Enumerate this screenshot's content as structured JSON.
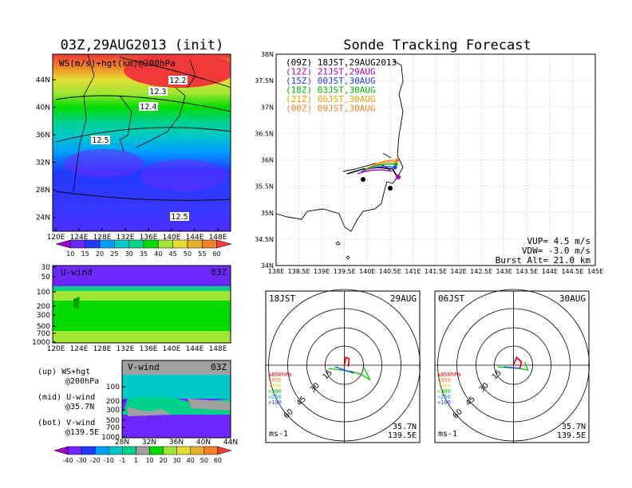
{
  "left_title": "03Z,29AUG2013 (init)",
  "right_title": "Sonde Tracking Forecast",
  "map_panel": {
    "label": "WS(m/s)+hgt(km)@200hPa",
    "y_ticks": [
      "44N",
      "40N",
      "36N",
      "32N",
      "28N",
      "24N"
    ],
    "x_ticks": [
      "120E",
      "124E",
      "128E",
      "132E",
      "136E",
      "140E",
      "144E",
      "148E"
    ],
    "contours": [
      "12.2",
      "12.3",
      "12.4",
      "12.5",
      "12.5"
    ]
  },
  "ws_colorbar": {
    "labels": [
      "10",
      "15",
      "20",
      "25",
      "30",
      "35",
      "40",
      "45",
      "50",
      "55",
      "60"
    ],
    "colors": [
      "#a000c8",
      "#6e28ff",
      "#1e3cff",
      "#00a0ff",
      "#00c8c8",
      "#00d28c",
      "#00dc00",
      "#a0e632",
      "#e6dc32",
      "#e6af2d",
      "#f08228",
      "#fa3c3c"
    ]
  },
  "u_panel": {
    "label": "U-wind",
    "time": "03Z",
    "y_ticks": [
      "30",
      "50",
      "100",
      "200",
      "300",
      "500",
      "700",
      "1000"
    ],
    "x_ticks": [
      "120E",
      "124E",
      "128E",
      "132E",
      "136E",
      "140E",
      "144E",
      "148E"
    ]
  },
  "v_panel": {
    "label": "V-wind",
    "time": "03Z",
    "y_ticks": [
      "100",
      "200",
      "300",
      "500",
      "700",
      "1000"
    ],
    "x_ticks": [
      "28N",
      "32N",
      "36N",
      "40N",
      "44N"
    ]
  },
  "legend_notes": [
    {
      "a": "(up) WS+hgt",
      "b": "@200hPa"
    },
    {
      "a": "(mid) U-wind",
      "b": "@35.7N"
    },
    {
      "a": "(bot) V-wind",
      "b": "@139.5E"
    }
  ],
  "wind_colorbar": {
    "labels": [
      "-40",
      "-30",
      "-20",
      "-10",
      "-1",
      "1",
      "10",
      "20",
      "30",
      "40",
      "50",
      "60"
    ],
    "colors": [
      "#a000c8",
      "#6e28ff",
      "#1e3cff",
      "#00a0ff",
      "#00c8c8",
      "#00d28c",
      "#a0a0a0",
      "#00dc00",
      "#a0e632",
      "#e6dc32",
      "#e6af2d",
      "#f08228",
      "#fa3c3c"
    ]
  },
  "track_panel": {
    "y_ticks": [
      "38N",
      "37.5N",
      "37N",
      "36.5N",
      "36N",
      "35.5N",
      "35N",
      "34.5N",
      "34N"
    ],
    "x_ticks": [
      "138E",
      "138.5E",
      "139E",
      "139.5E",
      "140E",
      "140.5E",
      "141E",
      "141.5E",
      "142E",
      "142.5E",
      "143E",
      "143.5E",
      "144E",
      "144.5E",
      "145E"
    ],
    "legend": [
      {
        "text": "(09Z) 18JST,29AUG2013",
        "color": "#000000"
      },
      {
        "text": "(12Z) 21JST,29AUG",
        "color": "#b400b4"
      },
      {
        "text": "(15Z) 00JST,30AUG",
        "color": "#1e3cff"
      },
      {
        "text": "(18Z) 03JST,30AUG",
        "color": "#00b400"
      },
      {
        "text": "(21Z) 06JST,30AUG",
        "color": "#f0a000"
      },
      {
        "text": "(00Z) 09JST,30AUG",
        "color": "#f08228"
      }
    ],
    "vup": "VUP= 4.5 m/s",
    "vdw": "VDW= -3.0 m/s",
    "burst": "Burst Alt= 21.0 km"
  },
  "hodographs": [
    {
      "left": "18JST",
      "right": "29AUG",
      "ring_labels": [
        "15",
        "30",
        "45",
        "60"
      ],
      "units": "ms-1",
      "lat": "35.7N",
      "lon": "139.5E"
    },
    {
      "left": "06JST",
      "right": "30AUG",
      "ring_labels": [
        "15",
        "30",
        "45",
        "60"
      ],
      "units": "ms-1",
      "lat": "35.7N",
      "lon": "139.5E"
    }
  ],
  "hodo_levels": [
    {
      "text": "≥850hPa",
      "color": "#fa0000"
    },
    {
      "text": "<850",
      "color": "#f08228"
    },
    {
      "text": "<700",
      "color": "#e6dc32"
    },
    {
      "text": "<500",
      "color": "#00c800"
    },
    {
      "text": "<250",
      "color": "#00a0ff"
    },
    {
      "text": "<100",
      "color": "#1e3cff"
    }
  ]
}
